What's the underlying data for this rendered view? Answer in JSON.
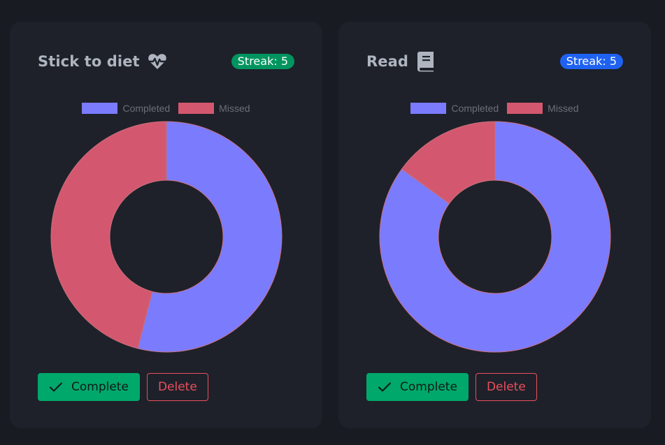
{
  "colors": {
    "completed": "#7b7bfd",
    "missed": "#d3586f",
    "streak_green": "#00955f",
    "streak_blue": "#1f62f1"
  },
  "legend": {
    "completed_label": "Completed",
    "missed_label": "Missed"
  },
  "habits": [
    {
      "title": "Stick to diet",
      "icon": "heart-pulse-icon",
      "streak_label": "Streak: 5",
      "complete_label": "Complete",
      "delete_label": "Delete"
    },
    {
      "title": "Read",
      "icon": "book-icon",
      "streak_label": "Streak: 5",
      "complete_label": "Complete",
      "delete_label": "Delete"
    }
  ],
  "chart_data": [
    {
      "type": "pie",
      "variant": "doughnut",
      "categories": [
        "Completed",
        "Missed"
      ],
      "values": [
        54,
        46
      ],
      "legend": "top",
      "title": ""
    },
    {
      "type": "pie",
      "variant": "doughnut",
      "categories": [
        "Completed",
        "Missed"
      ],
      "values": [
        85,
        15
      ],
      "legend": "top",
      "title": ""
    }
  ]
}
